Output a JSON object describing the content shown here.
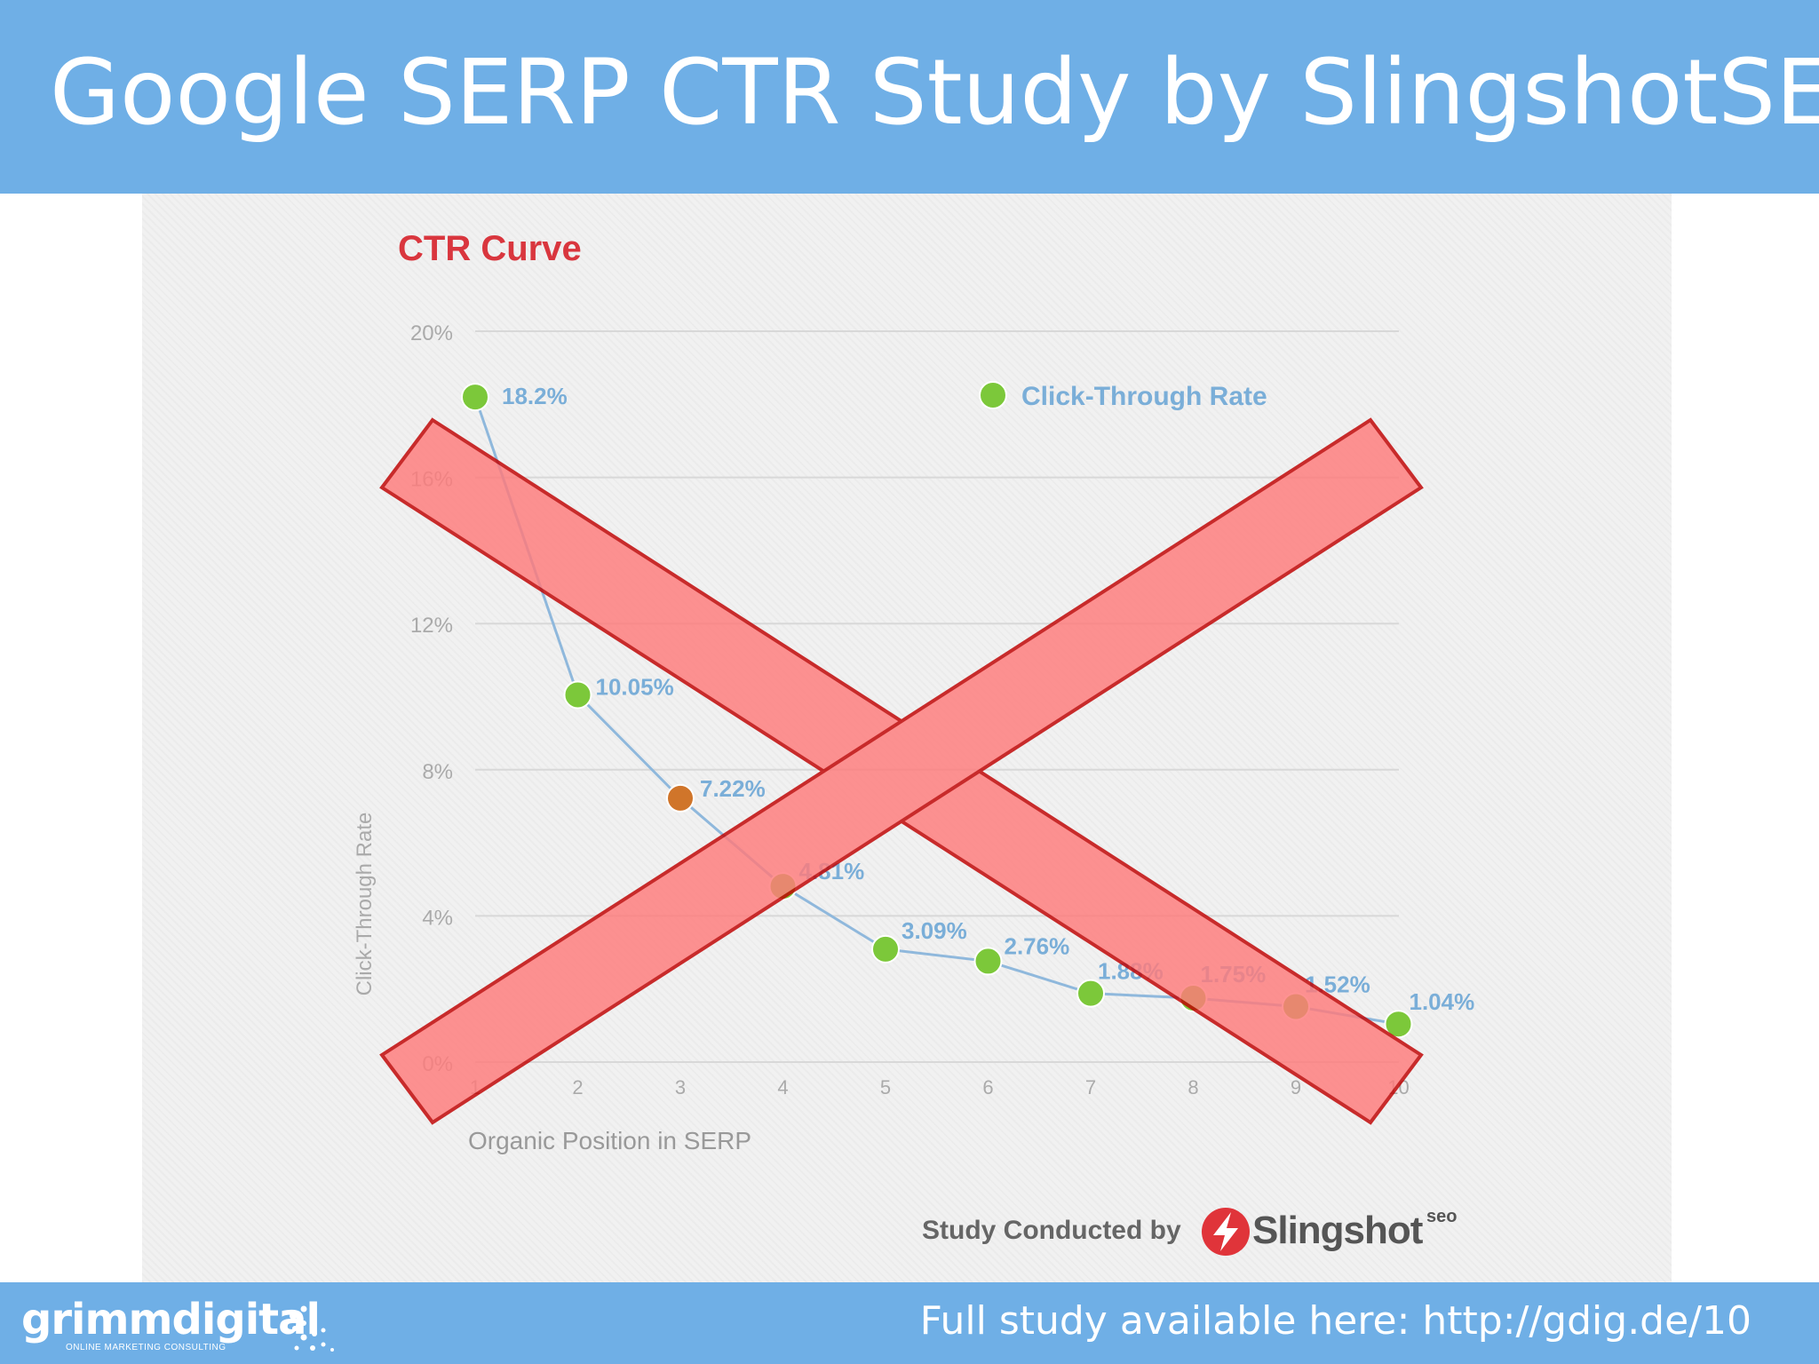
{
  "slide": {
    "title": "Google SERP CTR Study by SlingshotSEO",
    "footer_note": "Full study available here: http://gdig.de/10",
    "logo_word": "grimmdigital",
    "logo_tagline": "ONLINE MARKETING CONSULTING"
  },
  "credit": {
    "prefix": "Study Conducted by",
    "brand": "Slingshot",
    "brand_sup": "seo"
  },
  "chart_data": {
    "type": "line",
    "title": "CTR Curve",
    "xlabel": "Organic Position in SERP",
    "ylabel": "Click-Through Rate",
    "x": [
      1,
      2,
      3,
      4,
      5,
      6,
      7,
      8,
      9,
      10
    ],
    "series": [
      {
        "name": "Click-Through Rate",
        "values": [
          18.2,
          10.05,
          7.22,
          4.81,
          3.09,
          2.76,
          1.88,
          1.75,
          1.52,
          1.04
        ],
        "labels": [
          "18.2%",
          "10.05%",
          "7.22%",
          "4.81%",
          "3.09%",
          "2.76%",
          "1.88%",
          "1.75%",
          "1.52%",
          "1.04%"
        ]
      }
    ],
    "highlighted_point": 3,
    "ylim": [
      0,
      20
    ],
    "yticks": [
      0,
      4,
      8,
      12,
      16,
      20
    ],
    "ytick_labels": [
      "0%",
      "4%",
      "8%",
      "12%",
      "16%",
      "20%"
    ],
    "xtick_labels": [
      "1",
      "2",
      "3",
      "4",
      "5",
      "6",
      "7",
      "8",
      "9",
      "10"
    ],
    "grid": true,
    "legend": "top-right",
    "overlay": "red-x-crossed-out",
    "colors": {
      "title": "#d9363e",
      "line": "#8fb8dc",
      "point": "#7cc83a",
      "highlight_point": "#d0752a",
      "data_label": "#7aaed8",
      "grid": "#d8d8d8",
      "tick": "#aaaaaa",
      "overlay_fill": "#ff7b7b",
      "overlay_stroke": "#c00000"
    }
  }
}
